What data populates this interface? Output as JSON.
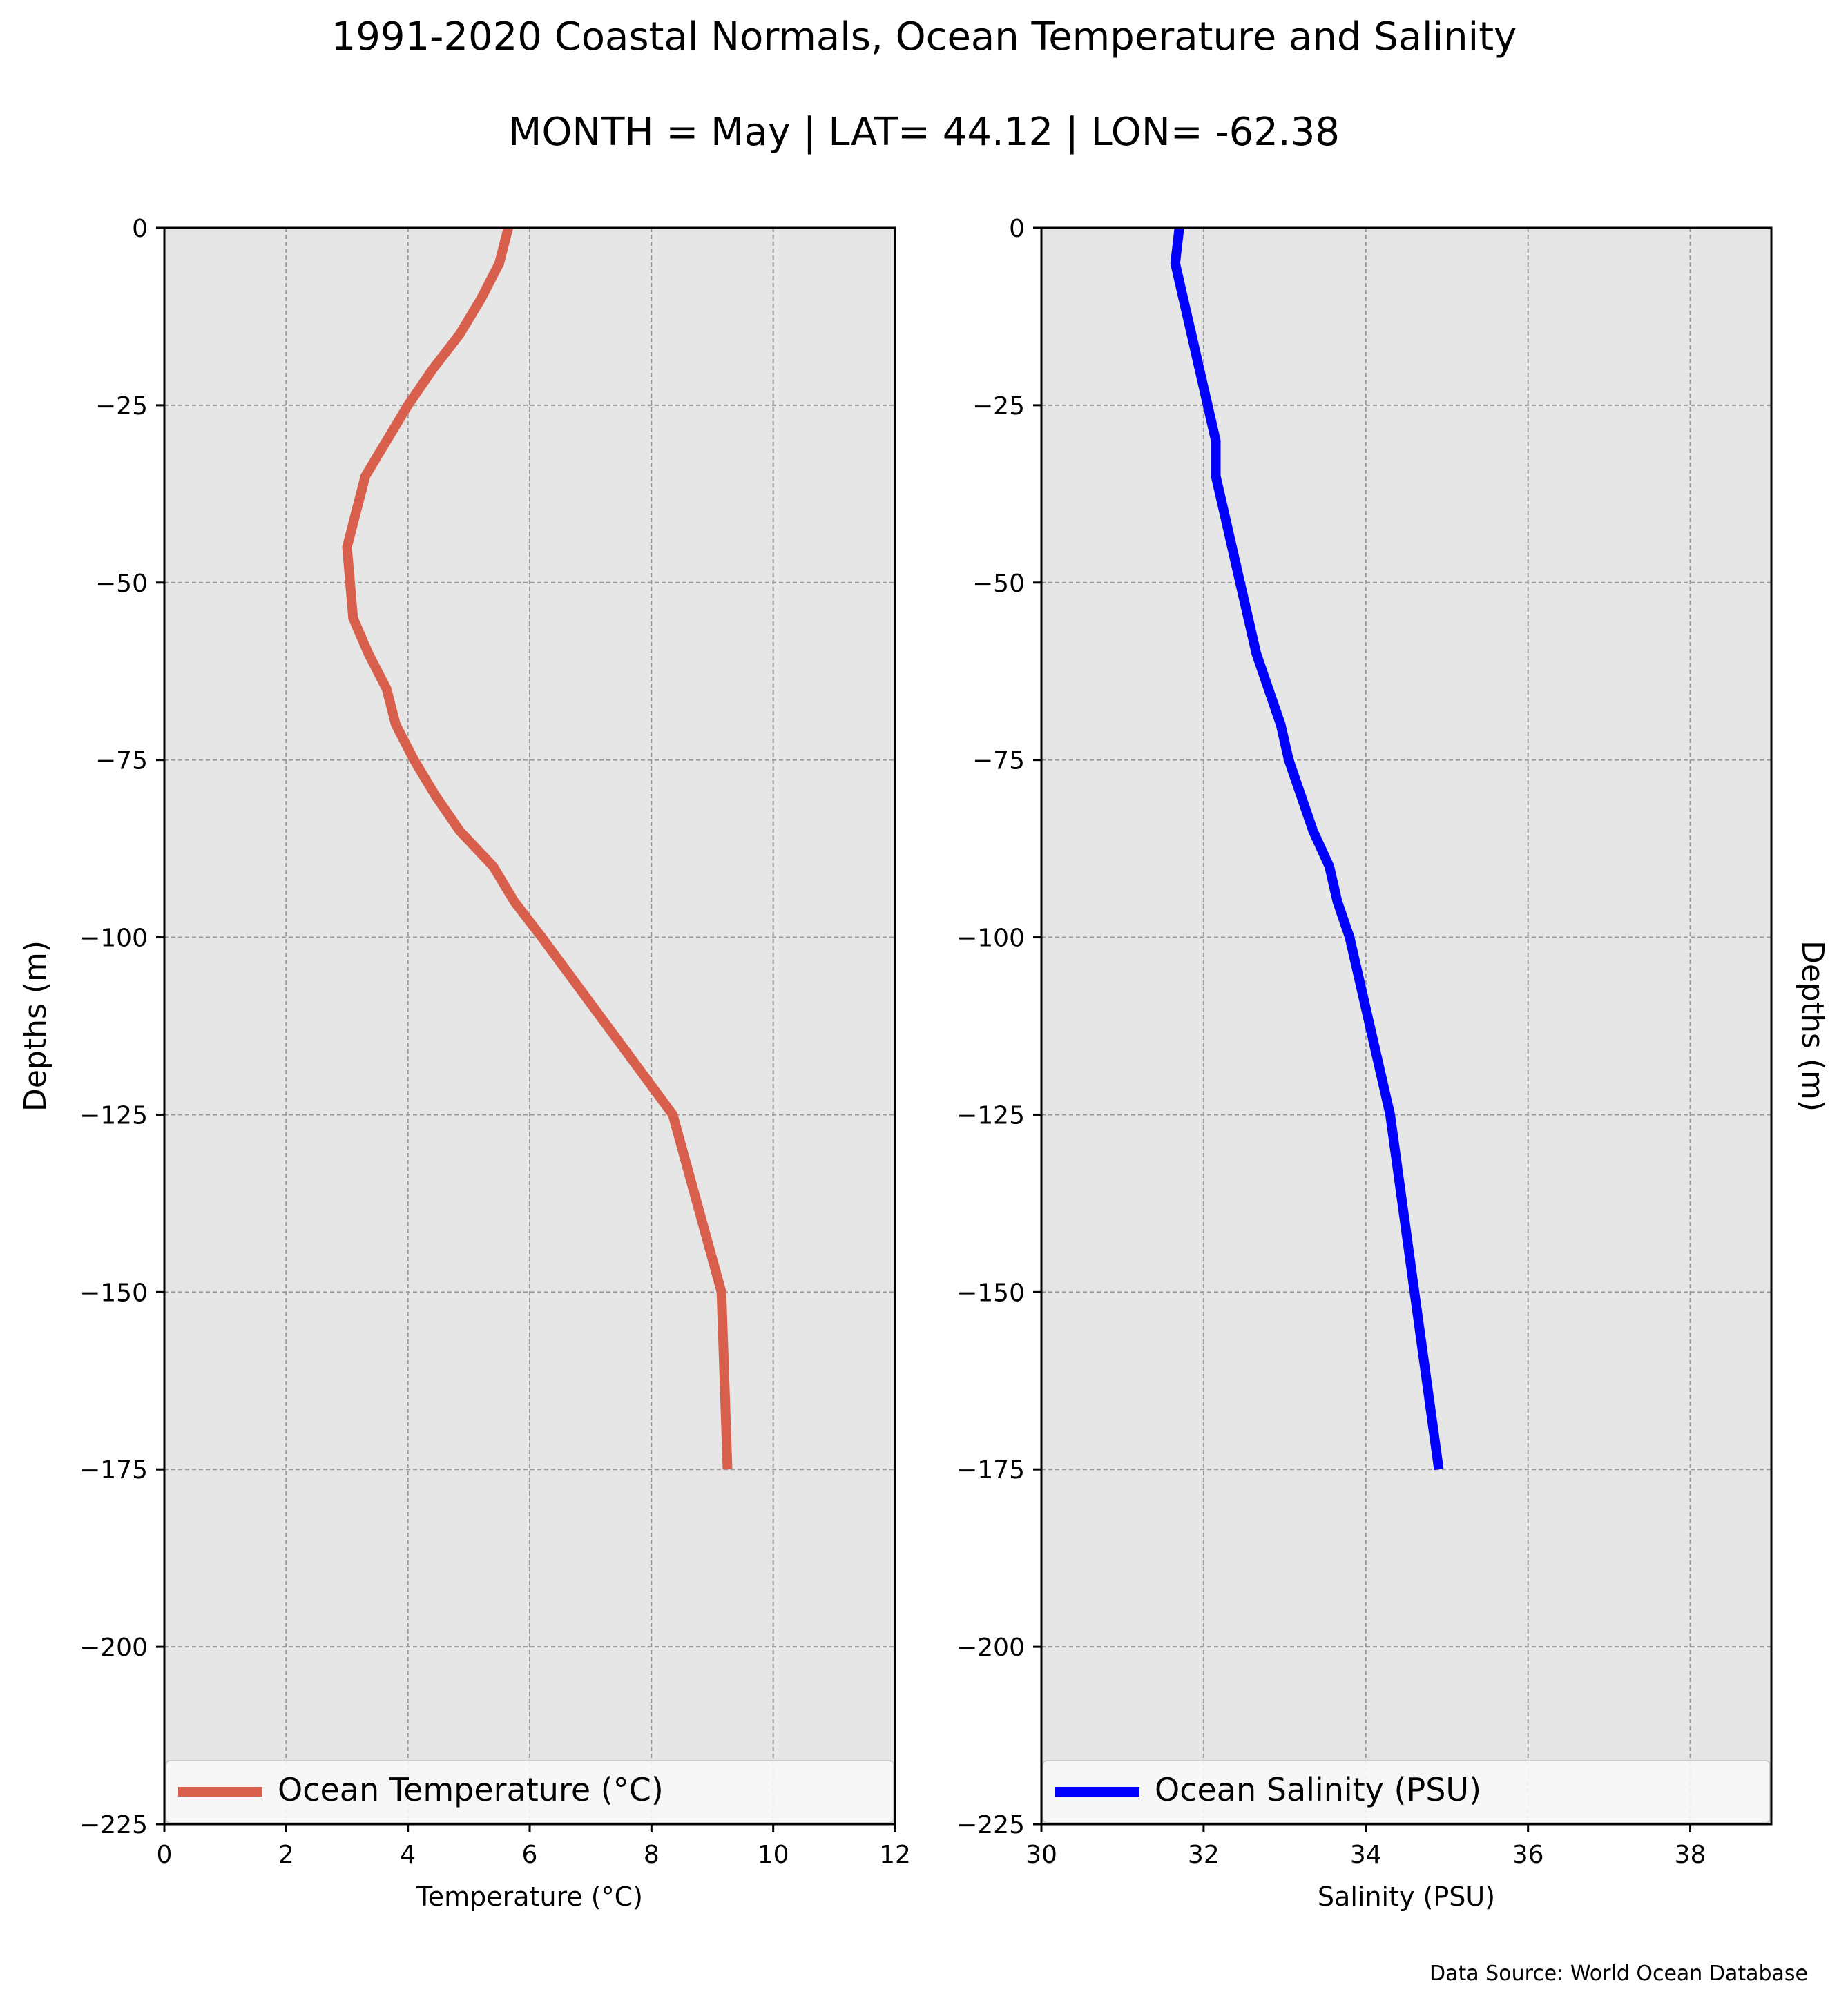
{
  "figure": {
    "title": "1991-2020 Coastal Normals, Ocean Temperature and Salinity",
    "subtitle": "MONTH = May | LAT= 44.12 | LON= -62.38",
    "source_note": "Data Source: World Ocean Database"
  },
  "chart_data": [
    {
      "type": "line",
      "xlabel": "Temperature ($^\\circ$C)",
      "xlabel_display": "Temperature (°C)",
      "ylabel": "Depths (m)",
      "xlim": [
        0,
        12
      ],
      "ylim": [
        -225,
        0
      ],
      "xticks": [
        0,
        2,
        4,
        6,
        8,
        10,
        12
      ],
      "yticks": [
        0,
        -25,
        -50,
        -75,
        -100,
        -125,
        -150,
        -175,
        -200,
        -225
      ],
      "grid": true,
      "legend_position": "lower center",
      "series": [
        {
          "name": "Ocean Temperature (°C)",
          "color": "#d95f4d",
          "points": [
            {
              "x": 5.65,
              "y": 0
            },
            {
              "x": 5.5,
              "y": -5
            },
            {
              "x": 5.2,
              "y": -10
            },
            {
              "x": 4.85,
              "y": -15
            },
            {
              "x": 4.4,
              "y": -20
            },
            {
              "x": 4.0,
              "y": -25
            },
            {
              "x": 3.65,
              "y": -30
            },
            {
              "x": 3.3,
              "y": -35
            },
            {
              "x": 3.15,
              "y": -40
            },
            {
              "x": 3.0,
              "y": -45
            },
            {
              "x": 3.05,
              "y": -50
            },
            {
              "x": 3.1,
              "y": -55
            },
            {
              "x": 3.35,
              "y": -60
            },
            {
              "x": 3.65,
              "y": -65
            },
            {
              "x": 3.8,
              "y": -70
            },
            {
              "x": 4.1,
              "y": -75
            },
            {
              "x": 4.45,
              "y": -80
            },
            {
              "x": 4.85,
              "y": -85
            },
            {
              "x": 5.4,
              "y": -90
            },
            {
              "x": 5.75,
              "y": -95
            },
            {
              "x": 6.2,
              "y": -100
            },
            {
              "x": 8.35,
              "y": -125
            },
            {
              "x": 9.15,
              "y": -150
            },
            {
              "x": 9.25,
              "y": -175
            }
          ]
        }
      ]
    },
    {
      "type": "line",
      "xlabel": "Salinity (PSU)",
      "ylabel": "Depths (m)",
      "xlim": [
        30,
        39
      ],
      "ylim": [
        -225,
        0
      ],
      "xticks": [
        30,
        32,
        34,
        36,
        38
      ],
      "yticks": [
        0,
        -25,
        -50,
        -75,
        -100,
        -125,
        -150,
        -175,
        -200,
        -225
      ],
      "grid": true,
      "legend_position": "lower center",
      "series": [
        {
          "name": "Ocean Salinity (PSU)",
          "color": "#0000ff",
          "points": [
            {
              "x": 31.7,
              "y": 0
            },
            {
              "x": 31.65,
              "y": -5
            },
            {
              "x": 31.75,
              "y": -10
            },
            {
              "x": 31.85,
              "y": -15
            },
            {
              "x": 31.95,
              "y": -20
            },
            {
              "x": 32.05,
              "y": -25
            },
            {
              "x": 32.15,
              "y": -30
            },
            {
              "x": 32.15,
              "y": -35
            },
            {
              "x": 32.25,
              "y": -40
            },
            {
              "x": 32.35,
              "y": -45
            },
            {
              "x": 32.45,
              "y": -50
            },
            {
              "x": 32.55,
              "y": -55
            },
            {
              "x": 32.65,
              "y": -60
            },
            {
              "x": 32.8,
              "y": -65
            },
            {
              "x": 32.95,
              "y": -70
            },
            {
              "x": 33.05,
              "y": -75
            },
            {
              "x": 33.2,
              "y": -80
            },
            {
              "x": 33.35,
              "y": -85
            },
            {
              "x": 33.55,
              "y": -90
            },
            {
              "x": 33.65,
              "y": -95
            },
            {
              "x": 33.8,
              "y": -100
            },
            {
              "x": 34.3,
              "y": -125
            },
            {
              "x": 34.6,
              "y": -150
            },
            {
              "x": 34.9,
              "y": -175
            }
          ]
        }
      ]
    }
  ]
}
